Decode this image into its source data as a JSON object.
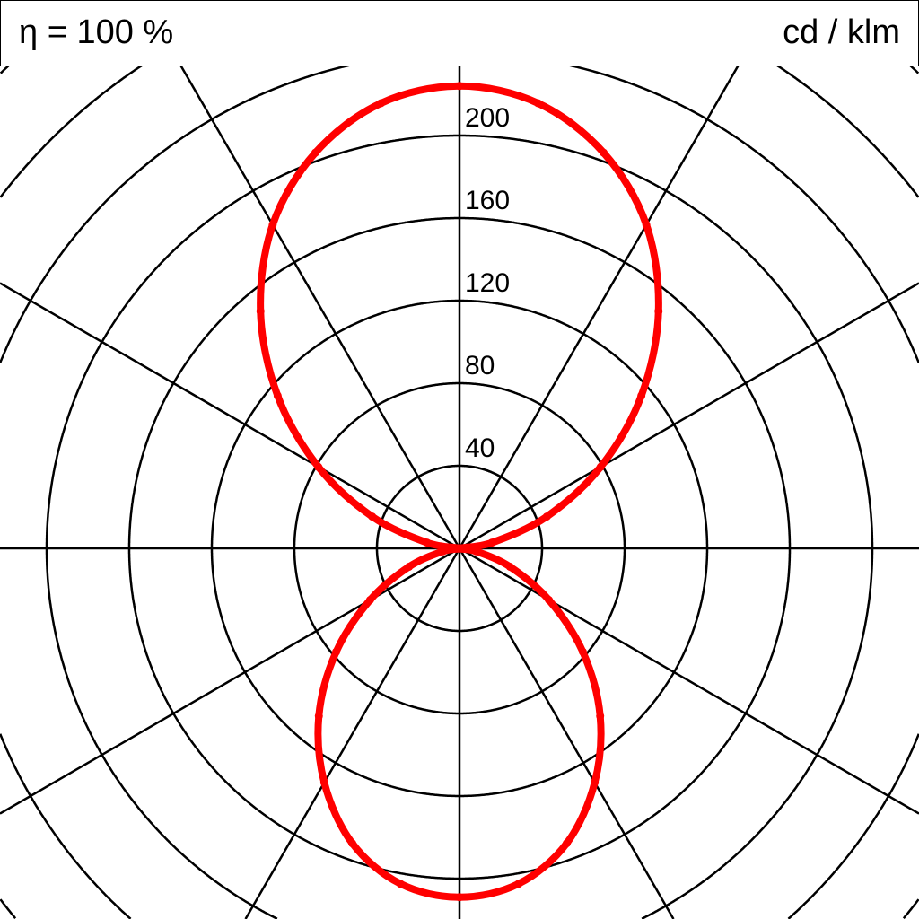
{
  "header": {
    "efficiency": "η = 100 %",
    "unit": "cd / klm"
  },
  "chart_data": {
    "type": "polar",
    "title": "",
    "radial_unit": "cd / klm",
    "radial_ticks": [
      40,
      80,
      120,
      160,
      200
    ],
    "radial_tick_labels": [
      "40",
      "80",
      "120",
      "160",
      "200"
    ],
    "angular_grid_step_deg": 30,
    "grid": true,
    "line_color": "#ff0000",
    "gamma_deg": [
      0,
      10,
      20,
      30,
      40,
      50,
      60,
      70,
      80,
      90,
      100,
      110,
      120,
      130,
      140,
      150,
      160,
      170,
      180
    ],
    "values": [
      169,
      165,
      152,
      131,
      106,
      78,
      50,
      26,
      8,
      0,
      16,
      45,
      79,
      115,
      150,
      181,
      204,
      219,
      224
    ],
    "symmetric": true
  }
}
